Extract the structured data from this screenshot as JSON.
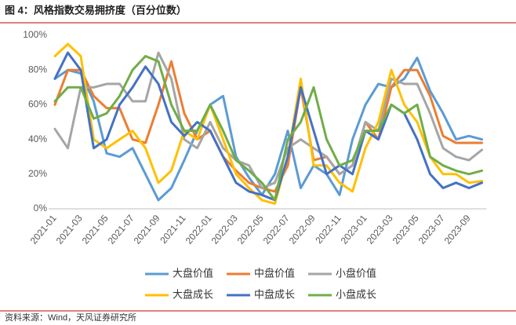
{
  "chart_data": {
    "type": "line",
    "title": "图 4：风格指数交易拥挤度（百分位数）",
    "source": "资料来源：Wind，天风证券研究所",
    "categories": [
      "2021-01",
      null,
      "2021-03",
      null,
      "2021-05",
      null,
      "2021-07",
      null,
      "2021-09",
      null,
      "2021-11",
      null,
      "2022-01",
      null,
      "2022-03",
      null,
      "2022-05",
      null,
      "2022-07",
      null,
      "2022-09",
      null,
      "2022-11",
      null,
      "2023-01",
      null,
      "2023-03",
      null,
      "2023-05",
      null,
      "2023-07",
      null,
      "2023-09",
      null
    ],
    "ylim": [
      0,
      100
    ],
    "yticks": [
      {
        "value": 0,
        "label": "0%"
      },
      {
        "value": 20,
        "label": "20%"
      },
      {
        "value": 40,
        "label": "40%"
      },
      {
        "value": 60,
        "label": "60%"
      },
      {
        "value": 80,
        "label": "80%"
      },
      {
        "value": 100,
        "label": "100%"
      }
    ],
    "series": [
      {
        "name": "大盘价值",
        "color": "#5b9bd5",
        "values": [
          75,
          80,
          78,
          62,
          32,
          30,
          35,
          20,
          5,
          12,
          28,
          45,
          60,
          65,
          30,
          18,
          8,
          20,
          45,
          12,
          25,
          20,
          8,
          40,
          60,
          72,
          70,
          75,
          87,
          68,
          55,
          40,
          42,
          40
        ]
      },
      {
        "name": "中盘价值",
        "color": "#ed7d31",
        "values": [
          60,
          80,
          80,
          65,
          58,
          58,
          40,
          38,
          60,
          85,
          55,
          40,
          45,
          30,
          22,
          15,
          12,
          10,
          25,
          70,
          28,
          30,
          20,
          25,
          50,
          40,
          70,
          80,
          80,
          65,
          42,
          38,
          38,
          38
        ]
      },
      {
        "name": "小盘价值",
        "color": "#a5a5a5",
        "values": [
          46,
          35,
          70,
          70,
          72,
          72,
          62,
          62,
          90,
          75,
          40,
          35,
          50,
          35,
          28,
          25,
          12,
          15,
          35,
          40,
          35,
          30,
          20,
          25,
          50,
          45,
          75,
          72,
          72,
          55,
          35,
          30,
          28,
          34
        ]
      },
      {
        "name": "大盘成长",
        "color": "#ffc000",
        "values": [
          88,
          95,
          88,
          40,
          35,
          40,
          45,
          35,
          15,
          22,
          45,
          40,
          60,
          40,
          20,
          12,
          5,
          3,
          30,
          75,
          25,
          25,
          15,
          10,
          35,
          50,
          80,
          60,
          50,
          30,
          20,
          20,
          15,
          16
        ]
      },
      {
        "name": "中盘成长",
        "color": "#4472c4",
        "values": [
          75,
          90,
          80,
          35,
          40,
          60,
          70,
          82,
          72,
          50,
          42,
          50,
          45,
          30,
          15,
          10,
          8,
          5,
          30,
          70,
          45,
          20,
          25,
          20,
          45,
          40,
          60,
          55,
          40,
          20,
          12,
          15,
          12,
          15
        ]
      },
      {
        "name": "小盘成长",
        "color": "#70ad47",
        "values": [
          62,
          70,
          70,
          52,
          55,
          65,
          80,
          88,
          85,
          60,
          45,
          45,
          60,
          45,
          28,
          22,
          15,
          5,
          40,
          50,
          70,
          40,
          25,
          28,
          45,
          45,
          60,
          55,
          60,
          30,
          25,
          22,
          20,
          22
        ]
      }
    ]
  }
}
